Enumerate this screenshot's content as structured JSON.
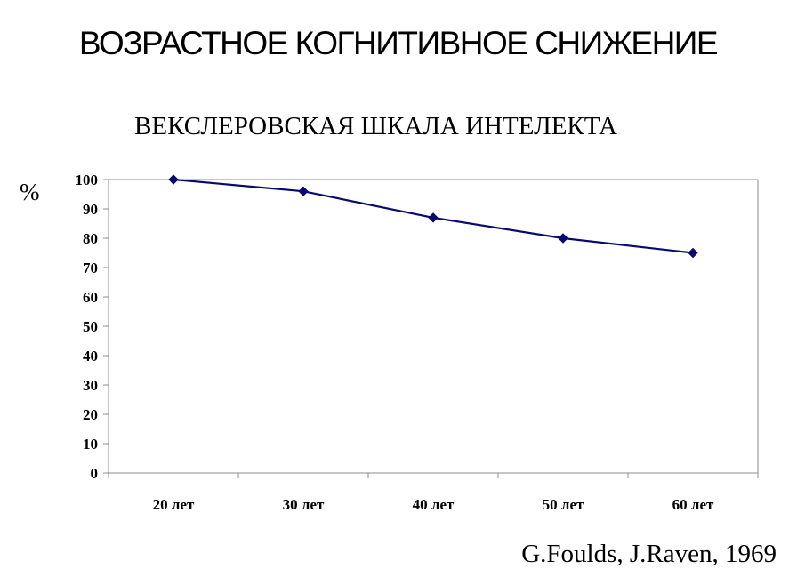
{
  "slide": {
    "title": "ВОЗРАСТНОЕ КОГНИТИВНОЕ СНИЖЕНИЕ",
    "citation": "G.Foulds, J.Raven, 1969"
  },
  "chart_data": {
    "type": "line",
    "title": "ВЕКСЛЕРОВСКАЯ ШКАЛА ИНТЕЛЕКТА",
    "ylabel": "%",
    "xlabel": "",
    "categories": [
      "20 лет",
      "30 лет",
      "40 лет",
      "50 лет",
      "60 лет"
    ],
    "series": [
      {
        "values": [
          100,
          96,
          87,
          80,
          75
        ]
      }
    ],
    "ylim": [
      0,
      100
    ],
    "yticks": [
      0,
      10,
      20,
      30,
      40,
      50,
      60,
      70,
      80,
      90,
      100
    ],
    "grid": false,
    "legend": "none",
    "line_color": "#0a0a6e"
  }
}
